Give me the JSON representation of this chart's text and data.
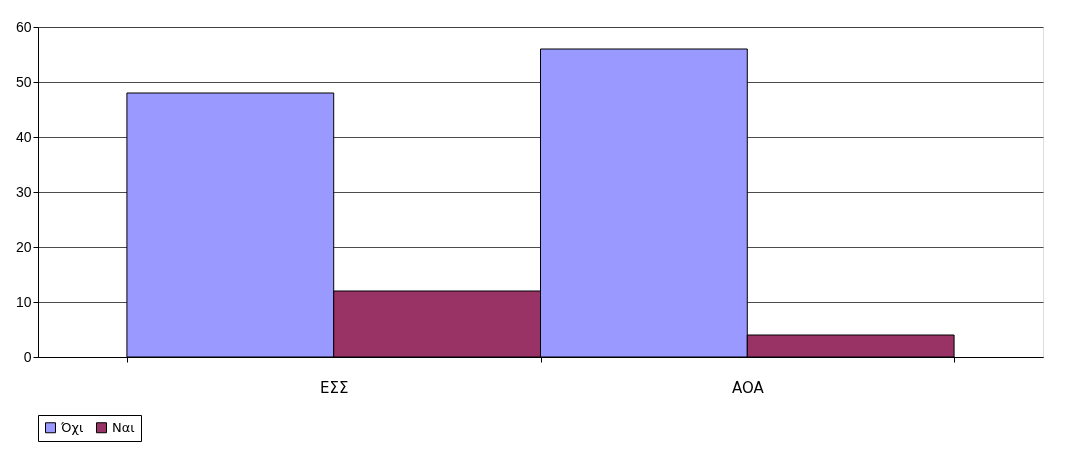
{
  "chart_data": {
    "type": "bar",
    "categories": [
      "ΕΣΣ",
      "AOA"
    ],
    "series": [
      {
        "name": "Όχι",
        "color": "#9999ff",
        "values": [
          48,
          56
        ]
      },
      {
        "name": "Ναι",
        "color": "#993366",
        "values": [
          12,
          4
        ]
      }
    ],
    "ylim": [
      0,
      60
    ],
    "yticks": [
      0,
      10,
      20,
      30,
      40,
      50,
      60
    ],
    "grid": "y",
    "legend": "bottom"
  }
}
